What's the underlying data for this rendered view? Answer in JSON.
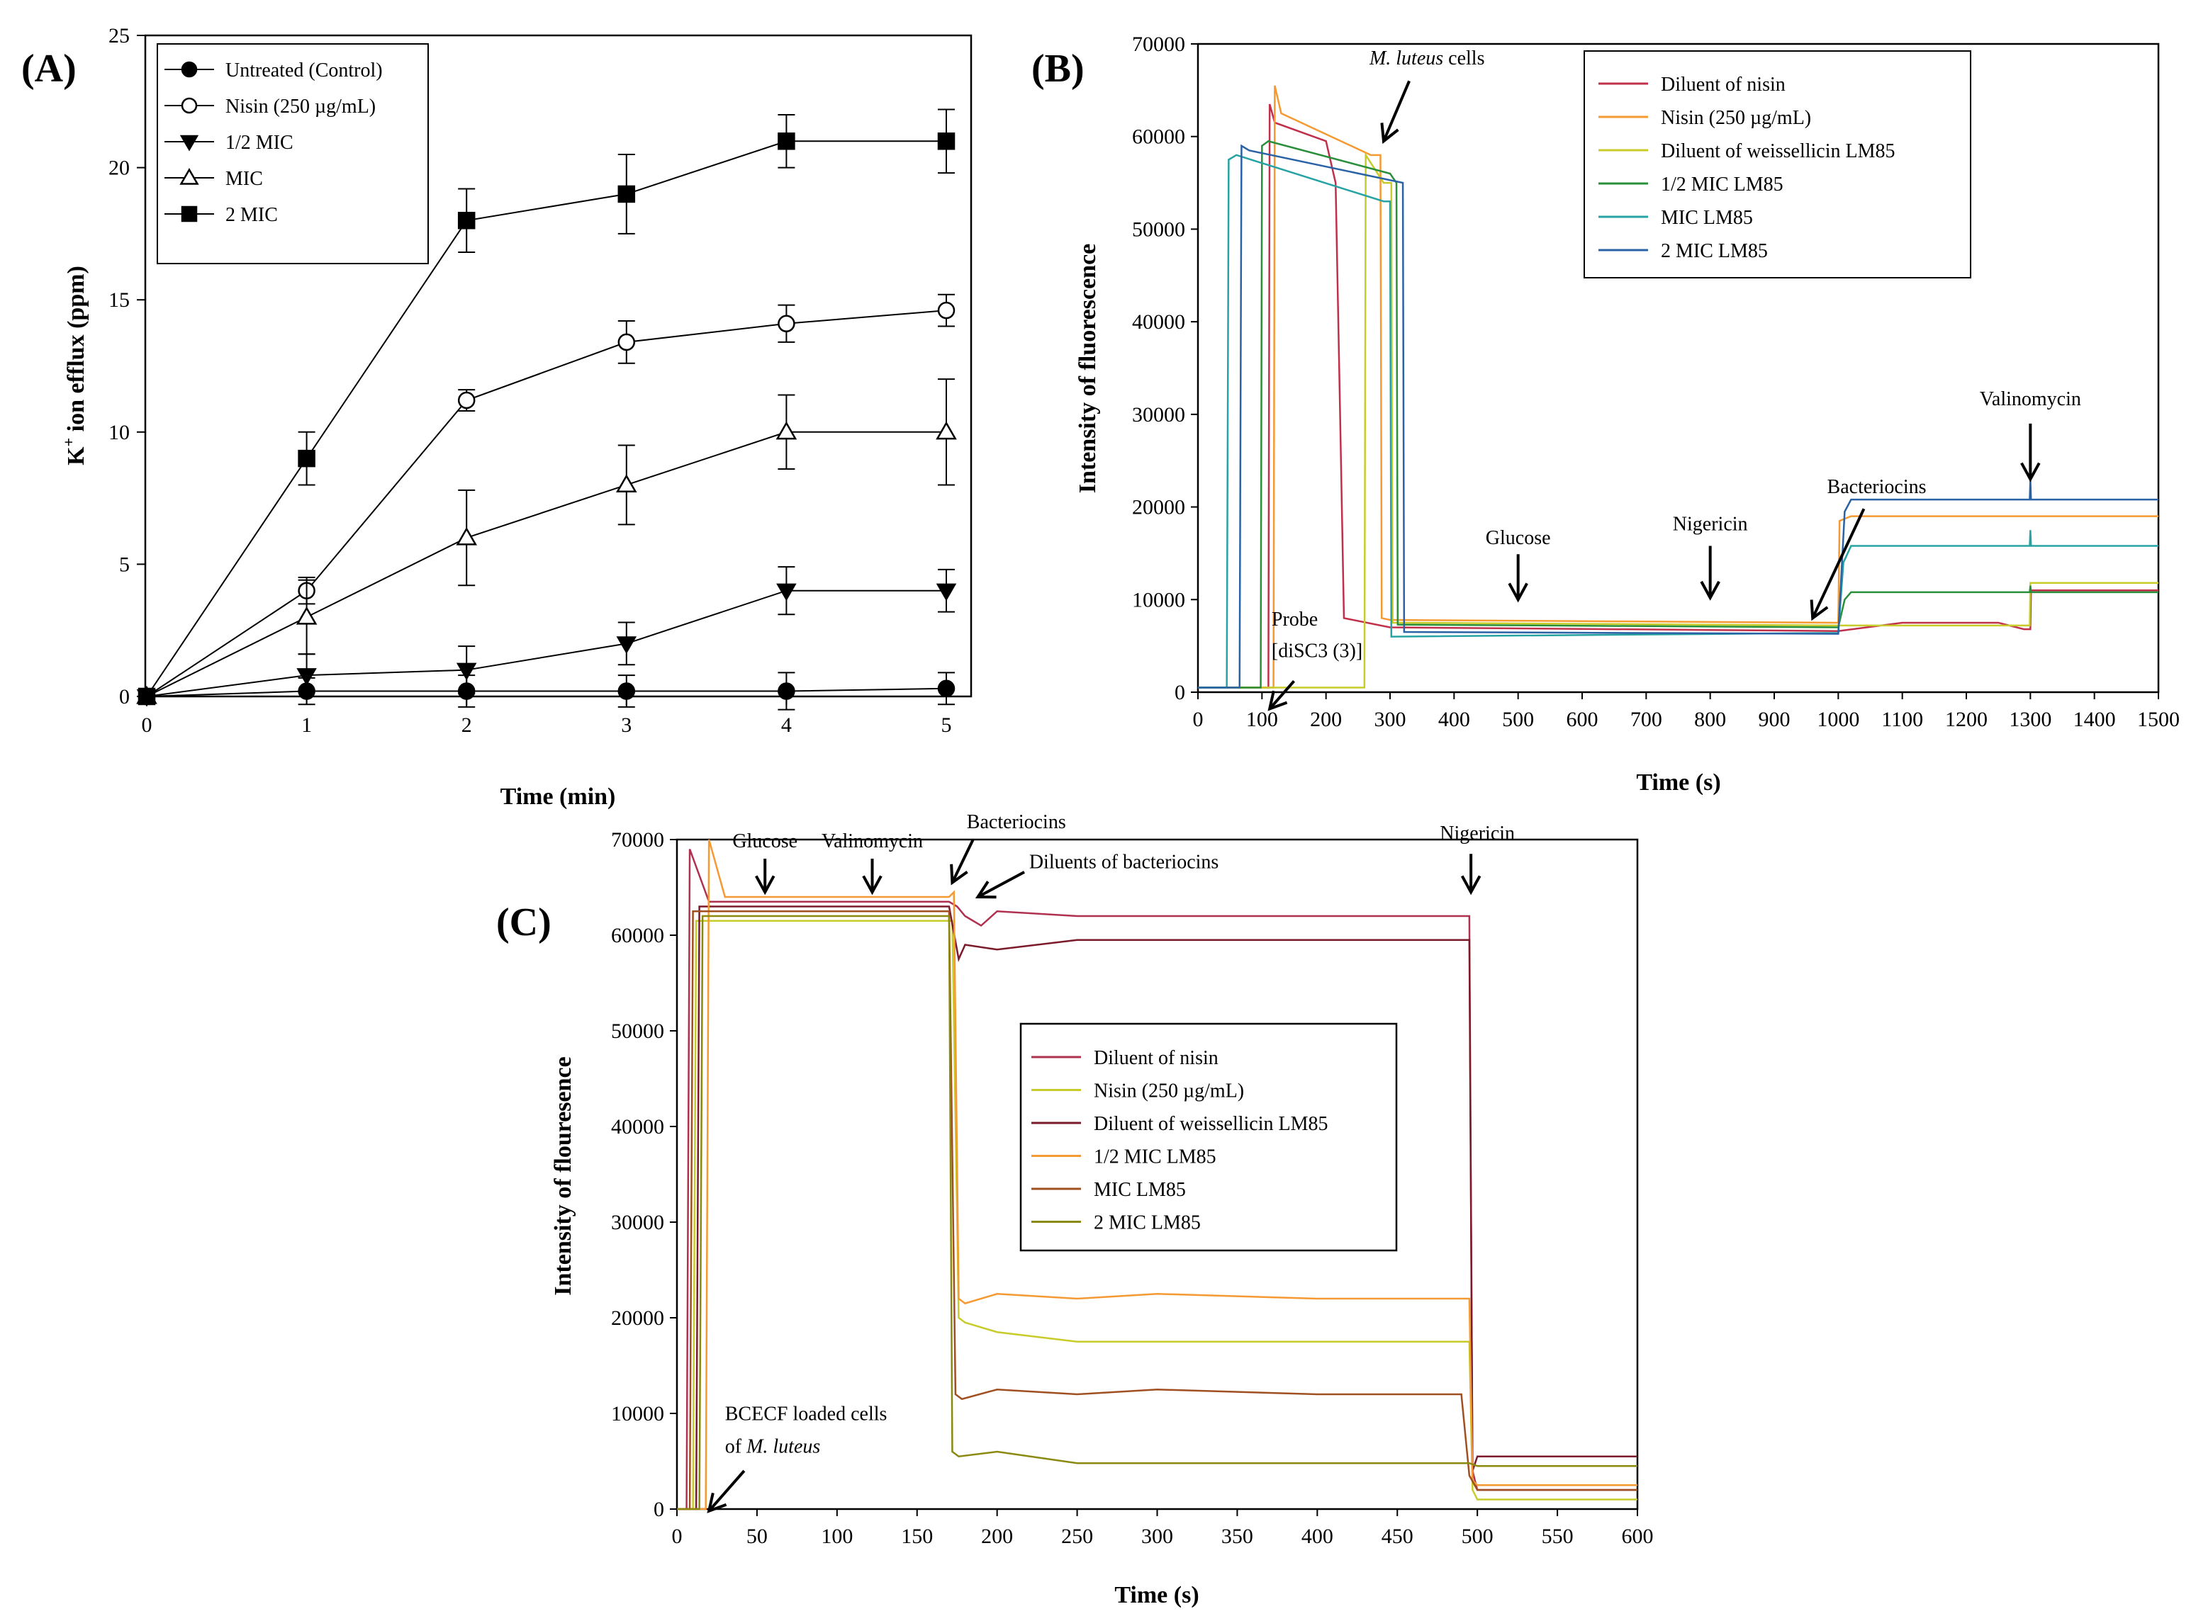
{
  "chart_data": [
    {
      "id": "A",
      "panel_label": "(A)",
      "type": "line",
      "xlabel": "Time (min)",
      "ylabel": "K+ ion efflux (ppm)",
      "ylabel_main": "K",
      "ylabel_sup": "+",
      "ylabel_rest": " ion efflux (ppm)",
      "xlim": [
        0,
        5
      ],
      "ylim": [
        0,
        25
      ],
      "xticks": [
        0,
        1,
        2,
        3,
        4,
        5
      ],
      "yticks": [
        0,
        5,
        10,
        15,
        20,
        25
      ],
      "legend_position": "top-left",
      "series": [
        {
          "name": "Untreated (Control)",
          "marker": "circle-filled",
          "x": [
            0,
            1,
            2,
            3,
            4,
            5
          ],
          "y": [
            0,
            0.2,
            0.2,
            0.2,
            0.2,
            0.3
          ],
          "err": [
            0,
            0.5,
            0.6,
            0.6,
            0.7,
            0.6
          ]
        },
        {
          "name": "Nisin (250 µg/mL)",
          "marker": "circle-open",
          "x": [
            0,
            1,
            2,
            3,
            4,
            5
          ],
          "y": [
            0,
            4,
            11.2,
            13.4,
            14.1,
            14.6
          ],
          "err": [
            0,
            0.5,
            0.4,
            0.8,
            0.7,
            0.6
          ]
        },
        {
          "name": "1/2 MIC",
          "marker": "triangle-down-filled",
          "x": [
            0,
            1,
            2,
            3,
            4,
            5
          ],
          "y": [
            0,
            0.8,
            1,
            2,
            4,
            4
          ],
          "err": [
            0,
            0.8,
            0.9,
            0.8,
            0.9,
            0.8
          ]
        },
        {
          "name": "MIC",
          "marker": "triangle-up-open",
          "x": [
            0,
            1,
            2,
            3,
            4,
            5
          ],
          "y": [
            0,
            3,
            6,
            8,
            10,
            10
          ],
          "err": [
            0,
            1.4,
            1.8,
            1.5,
            1.4,
            2
          ]
        },
        {
          "name": "2 MIC",
          "marker": "square-filled",
          "x": [
            0,
            1,
            2,
            3,
            4,
            5
          ],
          "y": [
            0,
            9,
            18,
            19,
            21,
            21
          ],
          "err": [
            0,
            1,
            1.2,
            1.5,
            1,
            1.2
          ]
        }
      ]
    },
    {
      "id": "B",
      "panel_label": "(B)",
      "type": "line",
      "xlabel": "Time (s)",
      "ylabel": "Intensity of fluorescence",
      "xlim": [
        0,
        1500
      ],
      "ylim": [
        0,
        70000
      ],
      "xticks": [
        0,
        100,
        200,
        300,
        400,
        500,
        600,
        700,
        800,
        900,
        1000,
        1100,
        1200,
        1300,
        1400,
        1500
      ],
      "yticks": [
        0,
        10000,
        20000,
        30000,
        40000,
        50000,
        60000,
        70000
      ],
      "legend_position": "top-right",
      "series": [
        {
          "name": "Diluent of nisin",
          "color": "#c0304a",
          "x": [
            0,
            110,
            112,
            120,
            200,
            215,
            222,
            228,
            300,
            1000,
            1100,
            1250,
            1290,
            1300,
            1301,
            1500
          ],
          "y": [
            500,
            500,
            63500,
            61500,
            59500,
            55000,
            30000,
            8000,
            7000,
            6600,
            7500,
            7500,
            6800,
            6800,
            11000,
            11000
          ]
        },
        {
          "name": "Nisin (250 µg/mL)",
          "color": "#f59a32",
          "x": [
            0,
            118,
            120,
            130,
            270,
            285,
            287,
            300,
            1000,
            1002,
            1020,
            1300,
            1500
          ],
          "y": [
            500,
            500,
            65500,
            62500,
            58000,
            58000,
            8000,
            7800,
            7500,
            18500,
            19000,
            19000,
            19000
          ]
        },
        {
          "name": "Diluent of weissellicin LM85",
          "color": "#c8cc2a",
          "x": [
            0,
            260,
            262,
            290,
            302,
            304,
            320,
            1000,
            1020,
            1299,
            1300,
            1301,
            1500
          ],
          "y": [
            500,
            500,
            58000,
            55000,
            55000,
            7500,
            7500,
            7200,
            7200,
            7200,
            11800,
            11800,
            11800
          ]
        },
        {
          "name": "1/2 MIC LM85",
          "color": "#2a8f3a",
          "x": [
            0,
            98,
            100,
            110,
            300,
            310,
            312,
            1000,
            1010,
            1020,
            1299,
            1300,
            1301,
            1500
          ],
          "y": [
            500,
            500,
            59000,
            59500,
            56000,
            55000,
            7300,
            7000,
            10000,
            10800,
            10800,
            11500,
            10800,
            10800
          ]
        },
        {
          "name": "MIC LM85",
          "color": "#27a3a3",
          "x": [
            0,
            45,
            48,
            60,
            290,
            300,
            302,
            1000,
            1008,
            1020,
            1299,
            1300,
            1301,
            1500
          ],
          "y": [
            500,
            500,
            57500,
            58000,
            53000,
            53000,
            6000,
            6400,
            14000,
            15800,
            15800,
            17500,
            15800,
            15800
          ]
        },
        {
          "name": "2 MIC LM85",
          "color": "#2a62a6",
          "x": [
            0,
            65,
            68,
            80,
            320,
            322,
            1000,
            1010,
            1020,
            1299,
            1300,
            1301,
            1500
          ],
          "y": [
            500,
            500,
            59000,
            58500,
            55000,
            6500,
            6300,
            19500,
            20800,
            20800,
            23000,
            20800,
            20800
          ]
        }
      ],
      "annotations": [
        {
          "text": "M. luteus cells",
          "italic_part": "M. luteus",
          "rest": " cells",
          "x": 290,
          "y": 60000
        },
        {
          "text": "Glucose",
          "x": 500,
          "y": 10000
        },
        {
          "text": "Nigericin",
          "x": 800,
          "y": 10000
        },
        {
          "text": "Bacteriocins",
          "x": 960,
          "y": 8000
        },
        {
          "text": "Valinomycin",
          "x": 1300,
          "y": 22500
        },
        {
          "text_line1": "Probe",
          "text_line2": "[diSC3 (3)]",
          "x": 110,
          "y": 500
        }
      ]
    },
    {
      "id": "C",
      "panel_label": "(C)",
      "type": "line",
      "xlabel": "Time (s)",
      "ylabel": "Intensity of flouresence",
      "xlim": [
        0,
        600
      ],
      "ylim": [
        0,
        70000
      ],
      "xticks": [
        0,
        50,
        100,
        150,
        200,
        250,
        300,
        350,
        400,
        450,
        500,
        550,
        600
      ],
      "yticks": [
        0,
        10000,
        20000,
        30000,
        40000,
        50000,
        60000,
        70000
      ],
      "legend_position": "center-right",
      "series": [
        {
          "name": "Diluent of nisin",
          "color": "#b03050",
          "x": [
            0,
            6,
            8,
            20,
            170,
            175,
            180,
            190,
            200,
            250,
            300,
            400,
            495,
            497,
            500,
            600
          ],
          "y": [
            0,
            0,
            69000,
            63500,
            63500,
            63000,
            62000,
            61000,
            62500,
            62000,
            62000,
            62000,
            62000,
            4000,
            2000,
            2000
          ]
        },
        {
          "name": "Nisin (250 µg/mL)",
          "color": "#c8cc2a",
          "x": [
            0,
            10,
            12,
            20,
            172,
            176,
            180,
            200,
            250,
            300,
            400,
            495,
            497,
            500,
            600
          ],
          "y": [
            0,
            0,
            61500,
            61500,
            61500,
            20000,
            19500,
            18500,
            17500,
            17500,
            17500,
            17500,
            2000,
            1000,
            1000
          ]
        },
        {
          "name": "Diluent of weissellicin LM85",
          "color": "#7a1a2a",
          "x": [
            0,
            12,
            14,
            20,
            170,
            176,
            180,
            200,
            250,
            300,
            400,
            495,
            497,
            500,
            600
          ],
          "y": [
            0,
            0,
            63000,
            63000,
            63000,
            57500,
            59000,
            58500,
            59500,
            59500,
            59500,
            59500,
            4000,
            5500,
            5500
          ]
        },
        {
          "name": "1/2 MIC LM85",
          "color": "#f59a32",
          "x": [
            0,
            18,
            20,
            30,
            170,
            173,
            176,
            180,
            200,
            250,
            300,
            400,
            495,
            497,
            500,
            600
          ],
          "y": [
            0,
            0,
            70000,
            64000,
            64000,
            64500,
            22000,
            21500,
            22500,
            22000,
            22500,
            22000,
            22000,
            3000,
            2500,
            2500
          ]
        },
        {
          "name": "MIC LM85",
          "color": "#a05020",
          "x": [
            0,
            8,
            10,
            20,
            170,
            174,
            178,
            200,
            250,
            300,
            400,
            490,
            495,
            500,
            600
          ],
          "y": [
            0,
            0,
            62500,
            62500,
            62500,
            12000,
            11500,
            12500,
            12000,
            12500,
            12000,
            12000,
            3500,
            2000,
            2000
          ]
        },
        {
          "name": "2 MIC LM85",
          "color": "#8a8a10",
          "x": [
            0,
            14,
            16,
            20,
            170,
            172,
            176,
            200,
            250,
            300,
            400,
            495,
            500,
            600
          ],
          "y": [
            0,
            0,
            62000,
            62000,
            62000,
            6000,
            5500,
            6000,
            4800,
            4800,
            4800,
            4800,
            4500,
            4500
          ]
        }
      ],
      "annotations": [
        {
          "text": "Glucose",
          "x": 55,
          "y": 64000
        },
        {
          "text": "Valinomycin",
          "x": 120,
          "y": 64000
        },
        {
          "text": "Bacteriocins",
          "x": 172,
          "y": 65500
        },
        {
          "text": "Diluents of bacteriocins",
          "x": 188,
          "y": 63500
        },
        {
          "text": "Nigericin",
          "x": 495,
          "y": 65000
        },
        {
          "text_line1": "BCECF loaded cells",
          "text_line2_plain": "of ",
          "text_line2_italic": "M. luteus",
          "x": 20,
          "y": 0
        }
      ]
    }
  ]
}
